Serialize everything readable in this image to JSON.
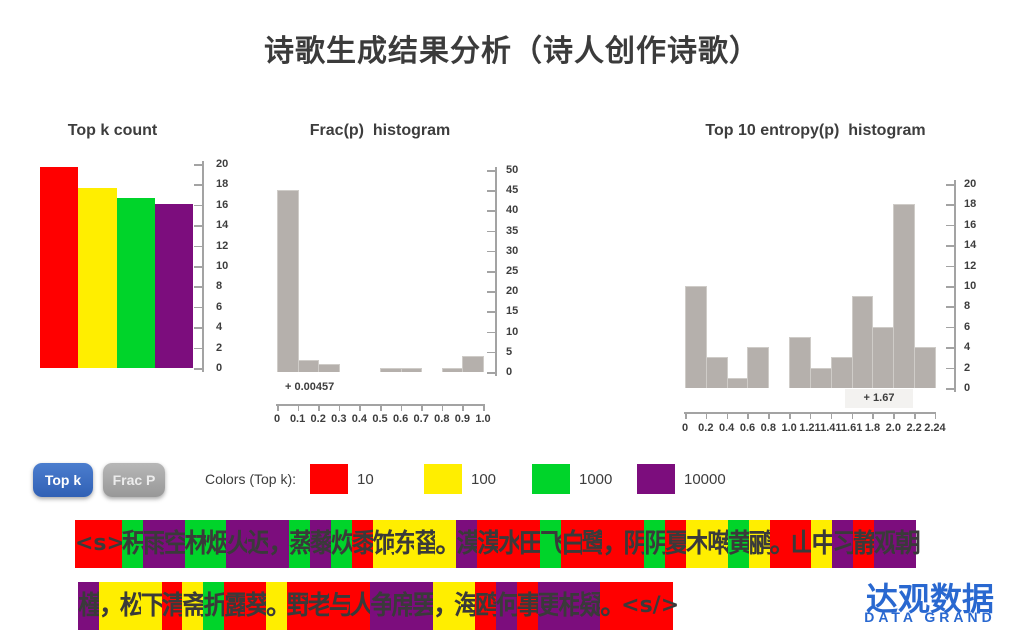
{
  "title": "诗歌生成结果分析（诗人创作诗歌）",
  "chart_data": [
    {
      "type": "bar",
      "title": "Top k count",
      "categories": [
        "10",
        "100",
        "1000",
        "10000"
      ],
      "values": [
        19.7,
        17.6,
        16.7,
        16.1
      ],
      "colors": [
        "#ff0000",
        "#ffee00",
        "#00d42a",
        "#7c0d7d"
      ],
      "ylim": [
        0,
        20
      ],
      "ytick_step": 2,
      "yaxis_side": "right",
      "grid": false
    },
    {
      "type": "bar",
      "subtype": "histogram",
      "title": "Frac(p)  histogram",
      "bin_edge_labels": [
        "0",
        "0.1",
        "0.2",
        "0.3",
        "0.4",
        "0.5",
        "0.6",
        "0.7",
        "0.8",
        "0.9",
        "1.0"
      ],
      "values": [
        45,
        3,
        2,
        0,
        0,
        1,
        1,
        0,
        1,
        4
      ],
      "bar_color": "#b5b0ac",
      "ylim": [
        0,
        50
      ],
      "ytick_step": 5,
      "yaxis_side": "right",
      "annotation": "+ 0.00457",
      "grid": false
    },
    {
      "type": "bar",
      "subtype": "histogram",
      "title": "Top 10 entropy(p)  histogram",
      "bin_edge_labels": [
        "0",
        "0.2",
        "0.4",
        "0.6",
        "0.8",
        "1.0",
        "1.21",
        "1.41",
        "1.61",
        "1.8",
        "2.0",
        "2.2",
        "2.24"
      ],
      "values": [
        10,
        3,
        1,
        4,
        0,
        5,
        2,
        3,
        9,
        6,
        18,
        4
      ],
      "bar_color": "#b5b0ac",
      "ylim": [
        0,
        20
      ],
      "ytick_step": 2,
      "yaxis_side": "right",
      "annotation": "+ 1.67",
      "grid": false
    }
  ],
  "buttons": {
    "topk": "Top k",
    "fracp": "Frac P"
  },
  "legend": {
    "label": "Colors (Top k):",
    "items": [
      {
        "value": "10",
        "color": "#ff0000"
      },
      {
        "value": "100",
        "color": "#ffee00"
      },
      {
        "value": "1000",
        "color": "#00d42a"
      },
      {
        "value": "10000",
        "color": "#7c0d7d"
      }
    ]
  },
  "token_colors": {
    "r": "#ff0000",
    "y": "#ffee00",
    "g": "#00d42a",
    "p": "#7c0d7d"
  },
  "token_rows": [
    {
      "tokens": [
        [
          "<s>",
          "r"
        ],
        [
          "积",
          "g"
        ],
        [
          "雨",
          "p"
        ],
        [
          "空",
          "p"
        ],
        [
          "林",
          "g"
        ],
        [
          "烟",
          "g"
        ],
        [
          "火",
          "p"
        ],
        [
          "迟",
          "p"
        ],
        [
          "，",
          "p"
        ],
        [
          "蒸",
          "g"
        ],
        [
          "藜",
          "p"
        ],
        [
          "炊",
          "g"
        ],
        [
          "黍",
          "r"
        ],
        [
          "饷",
          "y"
        ],
        [
          "东",
          "y"
        ],
        [
          "菑",
          "y"
        ],
        [
          "。",
          "y"
        ],
        [
          "漠",
          "p"
        ],
        [
          "漠",
          "r"
        ],
        [
          "水",
          "r"
        ],
        [
          "田",
          "r"
        ],
        [
          "飞",
          "g"
        ],
        [
          "白",
          "r"
        ],
        [
          "鹭",
          "r"
        ],
        [
          "，",
          "r"
        ],
        [
          "阴",
          "r"
        ],
        [
          "阴",
          "g"
        ],
        [
          "夏",
          "r"
        ],
        [
          "木",
          "y"
        ],
        [
          "啭",
          "y"
        ],
        [
          "黄",
          "g"
        ],
        [
          "鹂",
          "y"
        ],
        [
          "。",
          "r"
        ],
        [
          "山",
          "r"
        ],
        [
          "中",
          "y"
        ],
        [
          "习",
          "p"
        ],
        [
          "静",
          "r"
        ],
        [
          "观",
          "p"
        ],
        [
          "朝",
          "p"
        ]
      ]
    },
    {
      "tokens": [
        [
          "槿",
          "p"
        ],
        [
          "，",
          "y"
        ],
        [
          "松",
          "y"
        ],
        [
          "下",
          "y"
        ],
        [
          "清",
          "r"
        ],
        [
          "斋",
          "y"
        ],
        [
          "折",
          "g"
        ],
        [
          "露",
          "r"
        ],
        [
          "葵",
          "r"
        ],
        [
          "。",
          "y"
        ],
        [
          "野",
          "r"
        ],
        [
          "老",
          "r"
        ],
        [
          "与",
          "r"
        ],
        [
          "人",
          "r"
        ],
        [
          "争",
          "p"
        ],
        [
          "席",
          "p"
        ],
        [
          "罢",
          "p"
        ],
        [
          "，",
          "y"
        ],
        [
          "海",
          "y"
        ],
        [
          "鸥",
          "r"
        ],
        [
          "何",
          "p"
        ],
        [
          "事",
          "r"
        ],
        [
          "更",
          "p"
        ],
        [
          "相",
          "p"
        ],
        [
          "疑",
          "p"
        ],
        [
          "。",
          "r"
        ],
        [
          "<s/>",
          "r"
        ]
      ]
    }
  ],
  "logo": {
    "cn": "达观数据",
    "en": "DATA GRAND"
  }
}
